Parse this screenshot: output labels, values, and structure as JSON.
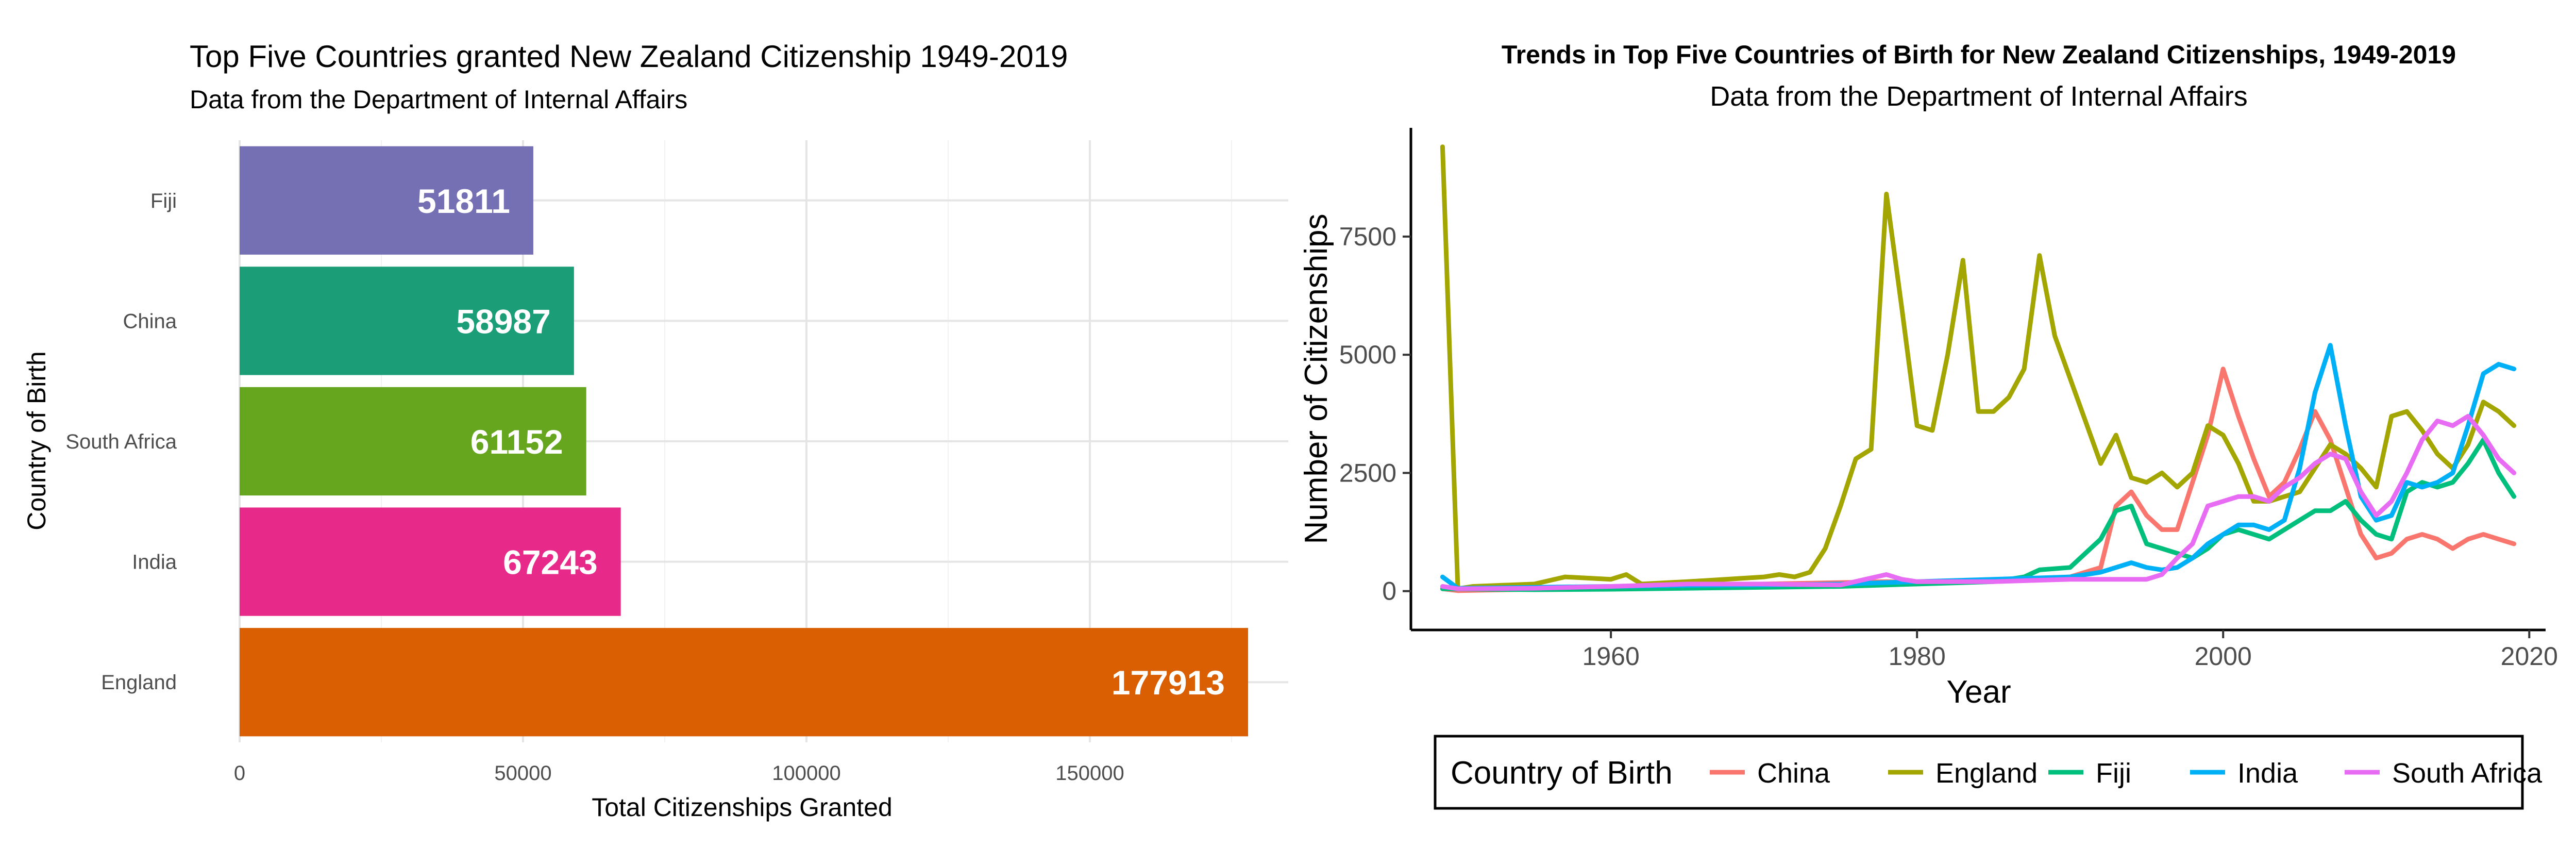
{
  "chart_data": [
    {
      "type": "bar",
      "orientation": "horizontal",
      "title": "Top Five Countries granted New Zealand Citizenship 1949-2019",
      "subtitle": "Data from the Department of Internal Affairs",
      "xlabel": "Total Citizenships Granted",
      "ylabel": "Country of Birth",
      "categories": [
        "Fiji",
        "China",
        "South Africa",
        "India",
        "England"
      ],
      "values": [
        51811,
        58987,
        61152,
        67243,
        177913
      ],
      "value_labels": [
        "51811",
        "58987",
        "61152",
        "67243",
        "177913"
      ],
      "colors": [
        "#7570B3",
        "#1B9E77",
        "#66A61E",
        "#E7298A",
        "#D95F02"
      ],
      "xlim": [
        0,
        185000
      ],
      "xticks": [
        0,
        50000,
        100000,
        150000
      ],
      "xtick_labels": [
        "0",
        "50000",
        "100000",
        "150000"
      ],
      "grid": true
    },
    {
      "type": "line",
      "title": "Trends in Top Five Countries of Birth for New Zealand Citizenships, 1949-2019",
      "subtitle": "Data from the Department of Internal Affairs",
      "xlabel": "Year",
      "ylabel": "Number of Citizenships",
      "xlim": [
        1947,
        2021
      ],
      "ylim": [
        -800,
        9800
      ],
      "xticks": [
        1960,
        1980,
        2000,
        2020
      ],
      "xtick_labels": [
        "1960",
        "1980",
        "2000",
        "2020"
      ],
      "yticks": [
        0,
        2500,
        5000,
        7500
      ],
      "ytick_labels": [
        "0",
        "2500",
        "5000",
        "7500"
      ],
      "grid": false,
      "legend": {
        "title": "Country of Birth",
        "position": "bottom"
      },
      "series": [
        {
          "name": "China",
          "color": "#F8766D",
          "x": [
            1949,
            1950,
            1955,
            1960,
            1965,
            1970,
            1975,
            1978,
            1980,
            1985,
            1990,
            1992,
            1993,
            1994,
            1995,
            1996,
            1997,
            1998,
            1999,
            2000,
            2001,
            2002,
            2003,
            2004,
            2005,
            2006,
            2007,
            2008,
            2009,
            2010,
            2011,
            2012,
            2013,
            2014,
            2015,
            2016,
            2017,
            2018,
            2019
          ],
          "y": [
            50,
            10,
            40,
            80,
            120,
            150,
            180,
            200,
            180,
            220,
            300,
            500,
            1800,
            2100,
            1600,
            1300,
            1300,
            2300,
            3300,
            4700,
            3700,
            2800,
            2000,
            2300,
            3000,
            3800,
            3200,
            2200,
            1200,
            700,
            800,
            1100,
            1200,
            1100,
            900,
            1100,
            1200,
            1100,
            1000
          ]
        },
        {
          "name": "England",
          "color": "#A3A500",
          "x": [
            1949,
            1950,
            1951,
            1955,
            1957,
            1960,
            1961,
            1962,
            1965,
            1970,
            1971,
            1972,
            1973,
            1974,
            1975,
            1976,
            1977,
            1978,
            1979,
            1980,
            1981,
            1982,
            1983,
            1984,
            1985,
            1986,
            1987,
            1988,
            1989,
            1990,
            1991,
            1992,
            1993,
            1994,
            1995,
            1996,
            1997,
            1998,
            1999,
            2000,
            2001,
            2002,
            2003,
            2004,
            2005,
            2006,
            2007,
            2008,
            2009,
            2010,
            2011,
            2012,
            2013,
            2014,
            2015,
            2016,
            2017,
            2018,
            2019
          ],
          "y": [
            9400,
            50,
            100,
            150,
            300,
            250,
            350,
            150,
            200,
            300,
            350,
            300,
            400,
            900,
            1800,
            2800,
            3000,
            8400,
            6000,
            3500,
            3400,
            5000,
            7000,
            3800,
            3800,
            4100,
            4700,
            7100,
            5400,
            4500,
            3600,
            2700,
            3300,
            2400,
            2300,
            2500,
            2200,
            2500,
            3500,
            3300,
            2700,
            1900,
            1900,
            2000,
            2100,
            2600,
            3100,
            2900,
            2600,
            2200,
            3700,
            3800,
            3400,
            2900,
            2600,
            3100,
            4000,
            3800,
            3500
          ]
        },
        {
          "name": "Fiji",
          "color": "#00BF7D",
          "x": [
            1949,
            1955,
            1960,
            1965,
            1970,
            1975,
            1980,
            1985,
            1987,
            1988,
            1990,
            1991,
            1992,
            1993,
            1994,
            1995,
            1996,
            1997,
            1998,
            1999,
            2000,
            2001,
            2002,
            2003,
            2004,
            2005,
            2006,
            2007,
            2008,
            2009,
            2010,
            2011,
            2012,
            2013,
            2014,
            2015,
            2016,
            2017,
            2018,
            2019
          ],
          "y": [
            50,
            30,
            40,
            60,
            80,
            100,
            150,
            200,
            300,
            450,
            500,
            800,
            1100,
            1700,
            1800,
            1000,
            900,
            800,
            700,
            900,
            1200,
            1300,
            1200,
            1100,
            1300,
            1500,
            1700,
            1700,
            1900,
            1500,
            1200,
            1100,
            2100,
            2300,
            2200,
            2300,
            2700,
            3200,
            2500,
            2000
          ]
        },
        {
          "name": "India",
          "color": "#00B0F6",
          "x": [
            1949,
            1950,
            1955,
            1960,
            1965,
            1970,
            1975,
            1980,
            1985,
            1990,
            1992,
            1993,
            1994,
            1995,
            1996,
            1997,
            1998,
            1999,
            2000,
            2001,
            2002,
            2003,
            2004,
            2005,
            2006,
            2007,
            2008,
            2009,
            2010,
            2011,
            2012,
            2013,
            2014,
            2015,
            2016,
            2017,
            2018,
            2019
          ],
          "y": [
            300,
            60,
            80,
            100,
            120,
            130,
            150,
            200,
            250,
            300,
            400,
            500,
            600,
            500,
            450,
            500,
            700,
            1000,
            1200,
            1400,
            1400,
            1300,
            1500,
            2600,
            4200,
            5200,
            3500,
            2000,
            1500,
            1600,
            2300,
            2200,
            2300,
            2500,
            3500,
            4600,
            4800,
            4700
          ]
        },
        {
          "name": "South Africa",
          "color": "#E76BF3",
          "x": [
            1949,
            1950,
            1955,
            1960,
            1965,
            1970,
            1975,
            1978,
            1979,
            1980,
            1985,
            1990,
            1993,
            1995,
            1996,
            1997,
            1998,
            1999,
            2000,
            2001,
            2002,
            2003,
            2004,
            2005,
            2006,
            2007,
            2008,
            2009,
            2010,
            2011,
            2012,
            2013,
            2014,
            2015,
            2016,
            2017,
            2018,
            2019
          ],
          "y": [
            100,
            50,
            60,
            100,
            150,
            150,
            130,
            350,
            250,
            200,
            200,
            250,
            250,
            250,
            350,
            700,
            1000,
            1800,
            1900,
            2000,
            2000,
            1900,
            2200,
            2400,
            2700,
            2900,
            2800,
            2100,
            1600,
            1900,
            2500,
            3200,
            3600,
            3500,
            3700,
            3300,
            2800,
            2500
          ]
        }
      ]
    }
  ]
}
